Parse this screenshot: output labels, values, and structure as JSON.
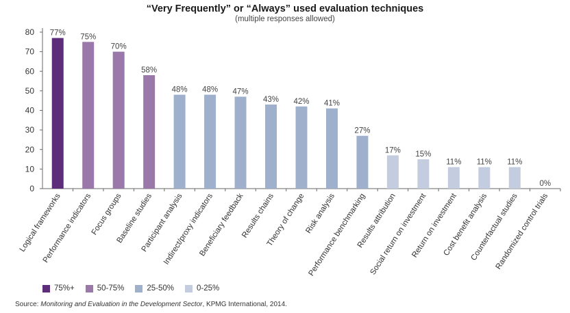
{
  "chart_data": {
    "type": "bar",
    "title": "“Very Frequently” or “Always” used evaluation techniques",
    "subtitle": "(multiple responses allowed)",
    "ylim": [
      0,
      80
    ],
    "yticks": [
      0,
      10,
      20,
      30,
      40,
      50,
      60,
      70,
      80
    ],
    "grid": false,
    "categories": [
      "Logical frameworks",
      "Performance indicators",
      "Focus groups",
      "Baseline studies",
      "Participant analysis",
      "Indirect/proxy indicators",
      "Beneficiary feedback",
      "Results chains",
      "Theory of change",
      "Risk analysis",
      "Performance benchmarking",
      "Results attribution",
      "Social return on investment",
      "Return on investment",
      "Cost benefit analysis",
      "Counterfactual studies",
      "Randomized control trials"
    ],
    "values": [
      77,
      75,
      70,
      58,
      48,
      48,
      47,
      43,
      42,
      41,
      27,
      17,
      15,
      11,
      11,
      11,
      0
    ],
    "data_labels": [
      "77%",
      "75%",
      "70%",
      "58%",
      "48%",
      "48%",
      "47%",
      "43%",
      "42%",
      "41%",
      "27%",
      "17%",
      "15%",
      "11%",
      "11%",
      "11%",
      "0%"
    ],
    "bar_group": [
      0,
      1,
      1,
      1,
      2,
      2,
      2,
      2,
      2,
      2,
      2,
      3,
      3,
      3,
      3,
      3,
      3
    ],
    "legend": [
      {
        "label": "75%+",
        "color": "#5e2d79"
      },
      {
        "label": "50-75%",
        "color": "#9b78aa"
      },
      {
        "label": "25-50%",
        "color": "#9fb0cc"
      },
      {
        "label": "0-25%",
        "color": "#c3cddf"
      }
    ],
    "legend_position": "bottom-left"
  },
  "source": {
    "prefix": "Source: ",
    "italic": "Monitoring and Evaluation in the Development Sector",
    "suffix": ", KPMG International, 2014."
  }
}
